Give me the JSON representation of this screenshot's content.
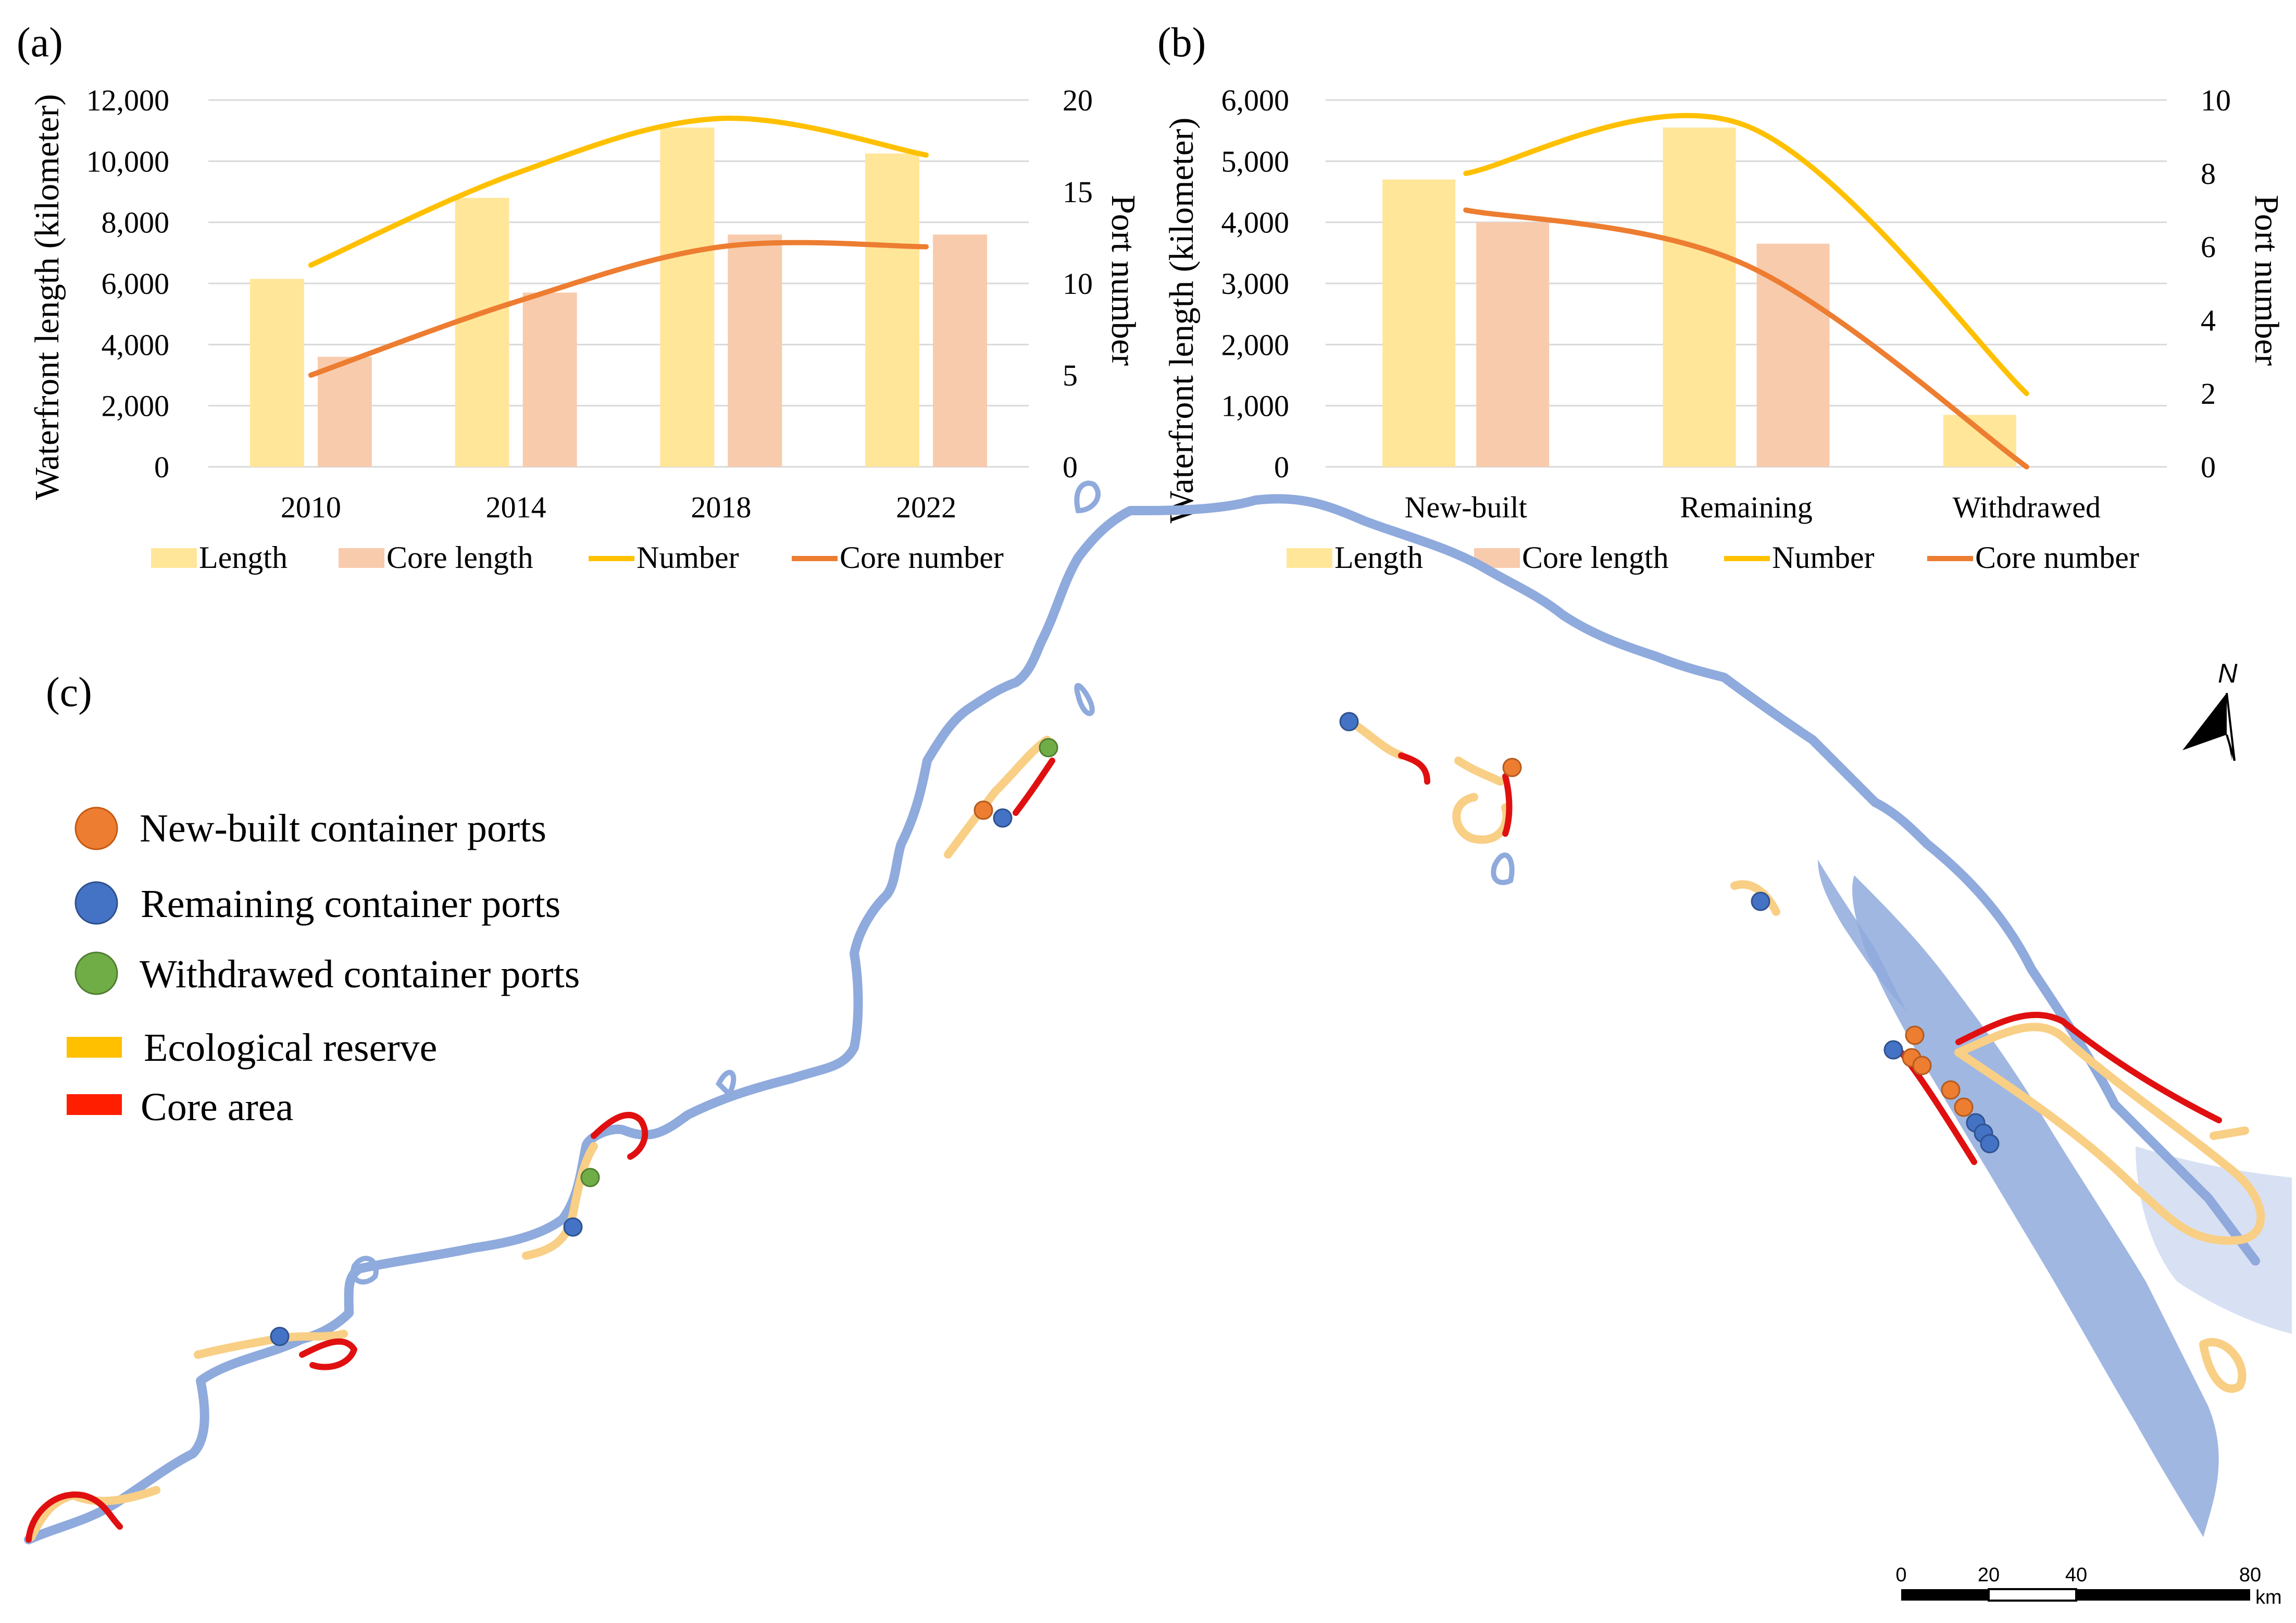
{
  "colors": {
    "length": "#FFE699",
    "core_length": "#F8CBAD",
    "number": "#FFC000",
    "core_number": "#ED7D31",
    "gridline": "#D9D9D9",
    "river": "#8FAADC",
    "eco_reserve": "#F8CF85",
    "core_area": "#E01010",
    "new_built_port": "#ED7D31",
    "remaining_port": "#4472C4",
    "withdrawed_port": "#70AD47"
  },
  "chart_data": [
    {
      "id": "a",
      "panel_label": "(a)",
      "type": "bar",
      "categories": [
        "2010",
        "2014",
        "2018",
        "2022"
      ],
      "series": [
        {
          "name": "Length",
          "type": "bar",
          "axis": "left",
          "values": [
            6150,
            8800,
            11100,
            10250
          ]
        },
        {
          "name": "Core length",
          "type": "bar",
          "axis": "left",
          "values": [
            3600,
            5700,
            7600,
            7600
          ]
        },
        {
          "name": "Number",
          "type": "line",
          "axis": "right",
          "values": [
            11,
            16,
            19,
            17
          ]
        },
        {
          "name": "Core number",
          "type": "line",
          "axis": "right",
          "values": [
            5,
            9,
            12,
            12
          ]
        }
      ],
      "ylabel": "Waterfront length (kilometer)",
      "y2label": "Port number",
      "ylim": [
        0,
        12000
      ],
      "y2lim": [
        0,
        20
      ],
      "yticks": [
        "0",
        "2,000",
        "4,000",
        "6,000",
        "8,000",
        "10,000",
        "12,000"
      ],
      "y2ticks": [
        "0",
        "5",
        "10",
        "15",
        "20"
      ],
      "legend": [
        "Length",
        "Core length",
        "Number",
        "Core number"
      ],
      "legend_position": "bottom",
      "grid": true
    },
    {
      "id": "b",
      "panel_label": "(b)",
      "type": "bar",
      "categories": [
        "New-built",
        "Remaining",
        "Withdrawed"
      ],
      "series": [
        {
          "name": "Length",
          "type": "bar",
          "axis": "left",
          "values": [
            4700,
            5550,
            850
          ]
        },
        {
          "name": "Core length",
          "type": "bar",
          "axis": "left",
          "values": [
            4000,
            3650,
            0
          ]
        },
        {
          "name": "Number",
          "type": "line",
          "axis": "right",
          "values": [
            8,
            9.3,
            2
          ]
        },
        {
          "name": "Core number",
          "type": "line",
          "axis": "right",
          "values": [
            7,
            5.5,
            0
          ]
        }
      ],
      "ylabel": "Waterfront length (kilometer)",
      "y2label": "Port number",
      "ylim": [
        0,
        6000
      ],
      "y2lim": [
        0,
        10
      ],
      "yticks": [
        "0",
        "1,000",
        "2,000",
        "3,000",
        "4,000",
        "5,000",
        "6,000"
      ],
      "y2ticks": [
        "0",
        "2",
        "4",
        "6",
        "8",
        "10"
      ],
      "legend": [
        "Length",
        "Core length",
        "Number",
        "Core number"
      ],
      "legend_position": "bottom",
      "grid": true
    }
  ],
  "map": {
    "panel_label": "(c)",
    "legend": [
      {
        "label": "New-built container ports",
        "symbol": "circle",
        "color_key": "new_built_port"
      },
      {
        "label": "Remaining container ports",
        "symbol": "circle",
        "color_key": "remaining_port"
      },
      {
        "label": "Withdrawed container ports",
        "symbol": "circle",
        "color_key": "withdrawed_port"
      },
      {
        "label": "Ecological reserve",
        "symbol": "bar",
        "color_key": "eco_reserve"
      },
      {
        "label": "Core area",
        "symbol": "bar",
        "color_key": "core_area"
      }
    ],
    "north_label": "N",
    "scale_bar": {
      "ticks": [
        "0",
        "20",
        "40",
        "80"
      ],
      "unit": "km"
    }
  }
}
